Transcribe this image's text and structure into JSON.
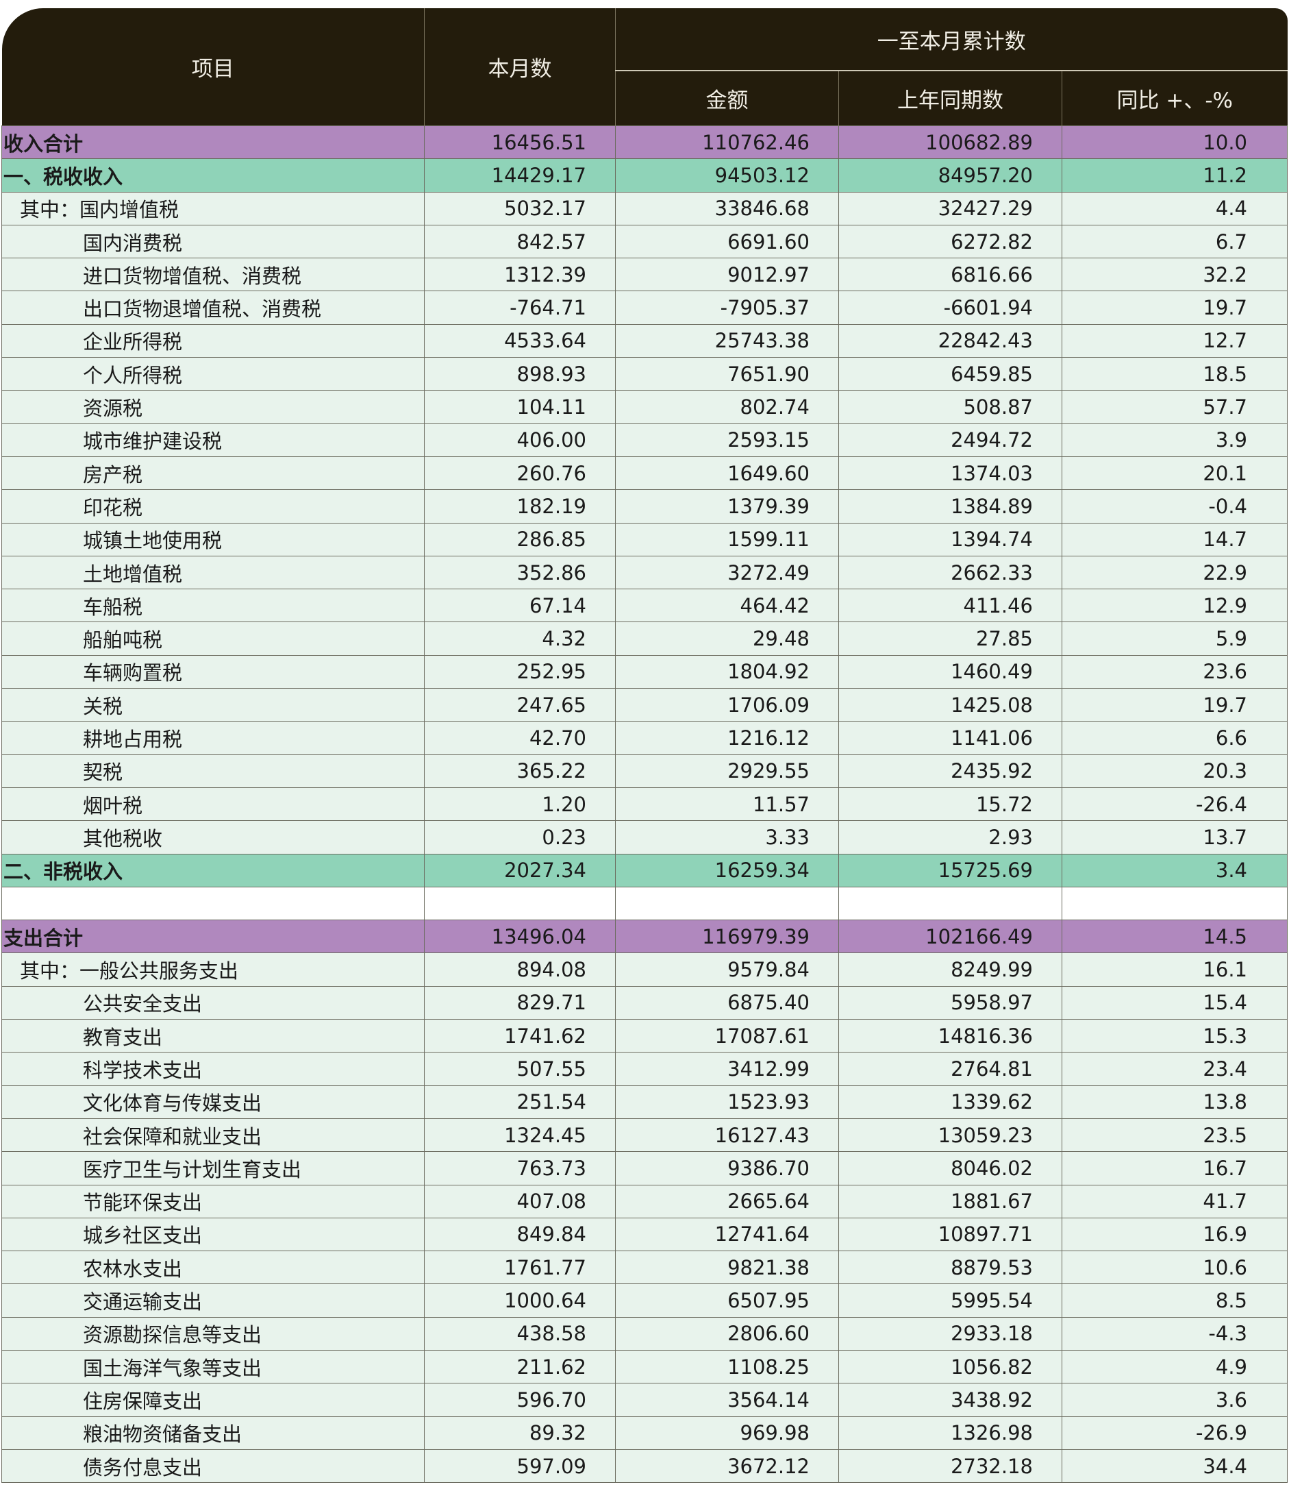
{
  "header": {
    "item": "项目",
    "month": "本月数",
    "cumulative": "一至本月累计数",
    "amount": "金额",
    "prev_year": "上年同期数",
    "yoy": "同比 +、-%"
  },
  "rows": [
    {
      "kind": "total",
      "label": "收入合计",
      "month": "16456.51",
      "amount": "110762.46",
      "prev": "100682.89",
      "yoy": "10.0"
    },
    {
      "kind": "cat",
      "label": "一、税收收入",
      "month": "14429.17",
      "amount": "94503.12",
      "prev": "84957.20",
      "yoy": "11.2"
    },
    {
      "kind": "lvl1",
      "label": "其中：国内增值税",
      "month": "5032.17",
      "amount": "33846.68",
      "prev": "32427.29",
      "yoy": "4.4"
    },
    {
      "kind": "lvl2",
      "label": "国内消费税",
      "month": "842.57",
      "amount": "6691.60",
      "prev": "6272.82",
      "yoy": "6.7"
    },
    {
      "kind": "lvl2",
      "label": "进口货物增值税、消费税",
      "month": "1312.39",
      "amount": "9012.97",
      "prev": "6816.66",
      "yoy": "32.2"
    },
    {
      "kind": "lvl2",
      "label": "出口货物退增值税、消费税",
      "month": "-764.71",
      "amount": "-7905.37",
      "prev": "-6601.94",
      "yoy": "19.7"
    },
    {
      "kind": "lvl2",
      "label": "企业所得税",
      "month": "4533.64",
      "amount": "25743.38",
      "prev": "22842.43",
      "yoy": "12.7"
    },
    {
      "kind": "lvl2",
      "label": "个人所得税",
      "month": "898.93",
      "amount": "7651.90",
      "prev": "6459.85",
      "yoy": "18.5"
    },
    {
      "kind": "lvl2",
      "label": "资源税",
      "month": "104.11",
      "amount": "802.74",
      "prev": "508.87",
      "yoy": "57.7"
    },
    {
      "kind": "lvl2",
      "label": "城市维护建设税",
      "month": "406.00",
      "amount": "2593.15",
      "prev": "2494.72",
      "yoy": "3.9"
    },
    {
      "kind": "lvl2",
      "label": "房产税",
      "month": "260.76",
      "amount": "1649.60",
      "prev": "1374.03",
      "yoy": "20.1"
    },
    {
      "kind": "lvl2",
      "label": "印花税",
      "month": "182.19",
      "amount": "1379.39",
      "prev": "1384.89",
      "yoy": "-0.4"
    },
    {
      "kind": "lvl2",
      "label": "城镇土地使用税",
      "month": "286.85",
      "amount": "1599.11",
      "prev": "1394.74",
      "yoy": "14.7"
    },
    {
      "kind": "lvl2",
      "label": "土地增值税",
      "month": "352.86",
      "amount": "3272.49",
      "prev": "2662.33",
      "yoy": "22.9"
    },
    {
      "kind": "lvl2",
      "label": "车船税",
      "month": "67.14",
      "amount": "464.42",
      "prev": "411.46",
      "yoy": "12.9"
    },
    {
      "kind": "lvl2",
      "label": "船舶吨税",
      "month": "4.32",
      "amount": "29.48",
      "prev": "27.85",
      "yoy": "5.9"
    },
    {
      "kind": "lvl2",
      "label": "车辆购置税",
      "month": "252.95",
      "amount": "1804.92",
      "prev": "1460.49",
      "yoy": "23.6"
    },
    {
      "kind": "lvl2",
      "label": "关税",
      "month": "247.65",
      "amount": "1706.09",
      "prev": "1425.08",
      "yoy": "19.7"
    },
    {
      "kind": "lvl2",
      "label": "耕地占用税",
      "month": "42.70",
      "amount": "1216.12",
      "prev": "1141.06",
      "yoy": "6.6"
    },
    {
      "kind": "lvl2",
      "label": "契税",
      "month": "365.22",
      "amount": "2929.55",
      "prev": "2435.92",
      "yoy": "20.3"
    },
    {
      "kind": "lvl2",
      "label": "烟叶税",
      "month": "1.20",
      "amount": "11.57",
      "prev": "15.72",
      "yoy": "-26.4"
    },
    {
      "kind": "lvl2",
      "label": "其他税收",
      "month": "0.23",
      "amount": "3.33",
      "prev": "2.93",
      "yoy": "13.7"
    },
    {
      "kind": "cat",
      "label": "二、非税收入",
      "month": "2027.34",
      "amount": "16259.34",
      "prev": "15725.69",
      "yoy": "3.4"
    },
    {
      "kind": "blank",
      "label": "",
      "month": "",
      "amount": "",
      "prev": "",
      "yoy": ""
    },
    {
      "kind": "total",
      "label": "支出合计",
      "month": "13496.04",
      "amount": "116979.39",
      "prev": "102166.49",
      "yoy": "14.5"
    },
    {
      "kind": "lvl1",
      "label": "其中：一般公共服务支出",
      "month": "894.08",
      "amount": "9579.84",
      "prev": "8249.99",
      "yoy": "16.1"
    },
    {
      "kind": "lvl2",
      "label": "公共安全支出",
      "month": "829.71",
      "amount": "6875.40",
      "prev": "5958.97",
      "yoy": "15.4"
    },
    {
      "kind": "lvl2",
      "label": "教育支出",
      "month": "1741.62",
      "amount": "17087.61",
      "prev": "14816.36",
      "yoy": "15.3"
    },
    {
      "kind": "lvl2",
      "label": "科学技术支出",
      "month": "507.55",
      "amount": "3412.99",
      "prev": "2764.81",
      "yoy": "23.4"
    },
    {
      "kind": "lvl2",
      "label": "文化体育与传媒支出",
      "month": "251.54",
      "amount": "1523.93",
      "prev": "1339.62",
      "yoy": "13.8"
    },
    {
      "kind": "lvl2",
      "label": "社会保障和就业支出",
      "month": "1324.45",
      "amount": "16127.43",
      "prev": "13059.23",
      "yoy": "23.5"
    },
    {
      "kind": "lvl2",
      "label": "医疗卫生与计划生育支出",
      "month": "763.73",
      "amount": "9386.70",
      "prev": "8046.02",
      "yoy": "16.7"
    },
    {
      "kind": "lvl2",
      "label": "节能环保支出",
      "month": "407.08",
      "amount": "2665.64",
      "prev": "1881.67",
      "yoy": "41.7"
    },
    {
      "kind": "lvl2",
      "label": "城乡社区支出",
      "month": "849.84",
      "amount": "12741.64",
      "prev": "10897.71",
      "yoy": "16.9"
    },
    {
      "kind": "lvl2",
      "label": "农林水支出",
      "month": "1761.77",
      "amount": "9821.38",
      "prev": "8879.53",
      "yoy": "10.6"
    },
    {
      "kind": "lvl2",
      "label": "交通运输支出",
      "month": "1000.64",
      "amount": "6507.95",
      "prev": "5995.54",
      "yoy": "8.5"
    },
    {
      "kind": "lvl2",
      "label": "资源勘探信息等支出",
      "month": "438.58",
      "amount": "2806.60",
      "prev": "2933.18",
      "yoy": "-4.3"
    },
    {
      "kind": "lvl2",
      "label": "国土海洋气象等支出",
      "month": "211.62",
      "amount": "1108.25",
      "prev": "1056.82",
      "yoy": "4.9"
    },
    {
      "kind": "lvl2",
      "label": "住房保障支出",
      "month": "596.70",
      "amount": "3564.14",
      "prev": "3438.92",
      "yoy": "3.6"
    },
    {
      "kind": "lvl2",
      "label": "粮油物资储备支出",
      "month": "89.32",
      "amount": "969.98",
      "prev": "1326.98",
      "yoy": "-26.9"
    },
    {
      "kind": "lvl2",
      "label": "债务付息支出",
      "month": "597.09",
      "amount": "3672.12",
      "prev": "2732.18",
      "yoy": "34.4"
    }
  ]
}
